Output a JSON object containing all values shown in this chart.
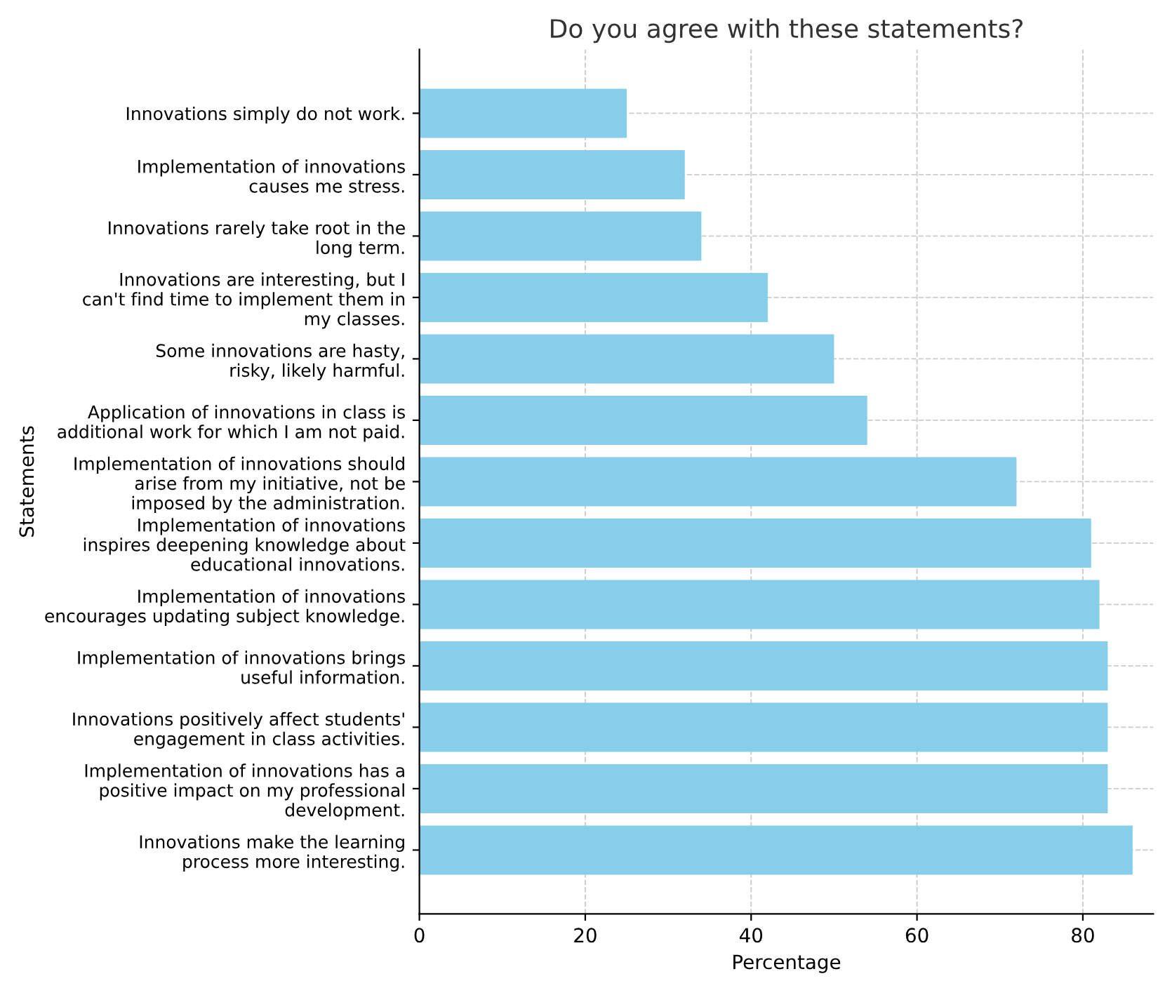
{
  "chart_data": {
    "type": "bar",
    "orientation": "horizontal",
    "title": "Do you agree with these statements?",
    "xlabel": "Percentage",
    "ylabel": "Statements",
    "categories": [
      "Innovations simply do not work.",
      "Implementation of innovations\ncauses me stress.",
      "Innovations rarely take root in the\nlong term.",
      "Innovations are interesting, but I\ncan't find time to implement them in\nmy classes.",
      "Some innovations are hasty,\nrisky, likely harmful.",
      "Application of innovations in class is\nadditional work for which I am not paid.",
      "Implementation of innovations should\narise from my initiative, not be\nimposed by the administration.",
      "Implementation of innovations\ninspires deepening knowledge about\neducational innovations.",
      "Implementation of innovations\nencourages updating subject knowledge.",
      "Implementation of innovations brings\nuseful information.",
      "Innovations positively affect students'\nengagement in class activities.",
      "Implementation of innovations has a\npositive impact on my professional\ndevelopment.",
      "Innovations make the learning\nprocess more interesting."
    ],
    "values": [
      25,
      32,
      34,
      42,
      50,
      54,
      72,
      81,
      82,
      83,
      83,
      83,
      86
    ],
    "color": "#87ceeb",
    "xlim": [
      0,
      88.5
    ],
    "xticks": [
      0,
      20,
      40,
      60,
      80
    ],
    "grid": true
  }
}
